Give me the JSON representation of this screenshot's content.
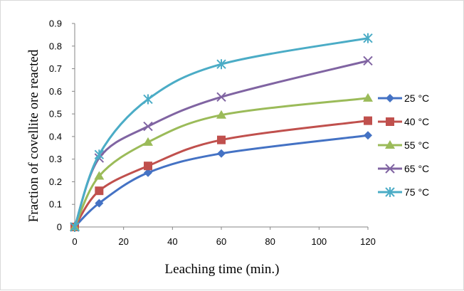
{
  "chart_data": {
    "type": "line",
    "xlabel": "Leaching time (min.)",
    "ylabel": "Fraction of covellite ore reacted",
    "xlim": [
      0,
      120
    ],
    "ylim": [
      0,
      0.9
    ],
    "x_ticks": [
      "0",
      "20",
      "40",
      "60",
      "80",
      "100",
      "120"
    ],
    "y_ticks": [
      "0",
      "0.1",
      "0.2",
      "0.3",
      "0.4",
      "0.5",
      "0.6",
      "0.7",
      "0.8",
      "0.9"
    ],
    "grid": false,
    "legend_position": "right",
    "x": [
      0,
      10,
      30,
      60,
      120
    ],
    "series": [
      {
        "name": "25 °C",
        "color": "#4472c4",
        "marker": "diamond",
        "values": [
          0,
          0.105,
          0.24,
          0.325,
          0.405
        ]
      },
      {
        "name": "40 °C",
        "color": "#c0504d",
        "marker": "square",
        "values": [
          0,
          0.16,
          0.27,
          0.385,
          0.47
        ]
      },
      {
        "name": "55 °C",
        "color": "#9bbb59",
        "marker": "triangle",
        "values": [
          0,
          0.225,
          0.375,
          0.495,
          0.57
        ]
      },
      {
        "name": "65 °C",
        "color": "#8064a2",
        "marker": "x",
        "values": [
          0,
          0.305,
          0.445,
          0.575,
          0.735
        ]
      },
      {
        "name": "75 °C",
        "color": "#4bacc6",
        "marker": "star",
        "values": [
          0,
          0.32,
          0.565,
          0.72,
          0.835
        ]
      }
    ]
  }
}
